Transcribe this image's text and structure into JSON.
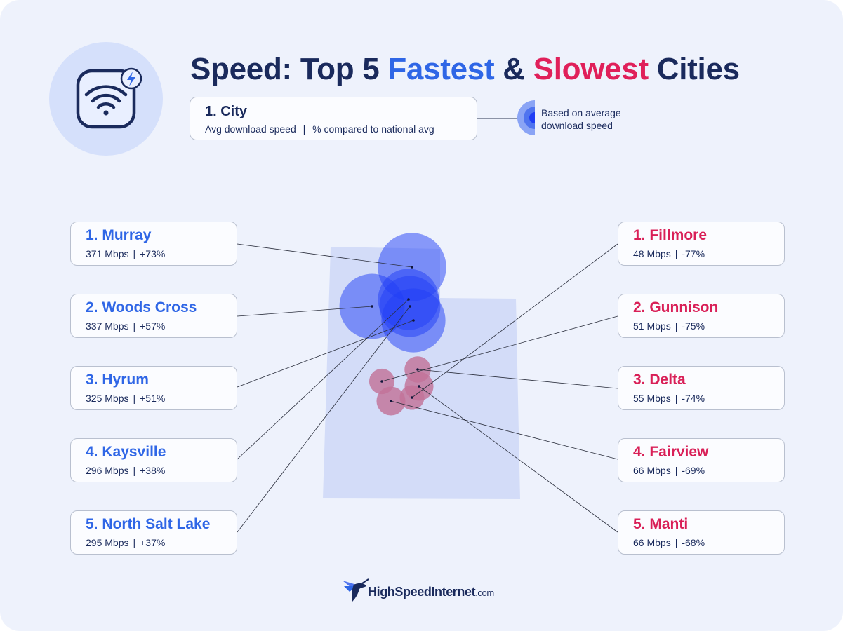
{
  "title": {
    "prefix": "Speed: Top 5",
    "fastest": "Fastest",
    "amp": "&",
    "slowest": "Slowest",
    "suffix": "Cities"
  },
  "key": {
    "city": "1. City",
    "metric_speed": "Avg download speed",
    "separator": "|",
    "metric_pct": "% compared to national avg",
    "bubble_note": "Based on average download speed"
  },
  "fastest": [
    {
      "name": "1. Murray",
      "speed": "371 Mbps",
      "pct": "+73%"
    },
    {
      "name": "2. Woods Cross",
      "speed": "337 Mbps",
      "pct": "+57%"
    },
    {
      "name": "3. Hyrum",
      "speed": "325 Mbps",
      "pct": "+51%"
    },
    {
      "name": "4. Kaysville",
      "speed": "296 Mbps",
      "pct": "+38%"
    },
    {
      "name": "5. North Salt Lake",
      "speed": "295 Mbps",
      "pct": "+37%"
    }
  ],
  "slowest": [
    {
      "name": "1. Fillmore",
      "speed": "48 Mbps",
      "pct": "-77%"
    },
    {
      "name": "2. Gunnison",
      "speed": "51 Mbps",
      "pct": "-75%"
    },
    {
      "name": "3. Delta",
      "speed": "55 Mbps",
      "pct": "-74%"
    },
    {
      "name": "4. Fairview",
      "speed": "66 Mbps",
      "pct": "-69%"
    },
    {
      "name": "5. Manti",
      "speed": "66 Mbps",
      "pct": "-68%"
    }
  ],
  "logo": {
    "name": "HighSpeedInternet",
    "tld": ".com"
  },
  "colors": {
    "title": "#1a2a5c",
    "fastest": "#2f66e6",
    "slowest": "#e0205a",
    "state": "#d3dcf8",
    "fast_bubble": "#1f3df5",
    "slow_bubble": "#c27399"
  },
  "icons": [
    "wifi-icon",
    "lightning-icon",
    "hummingbird-logo-icon"
  ]
}
